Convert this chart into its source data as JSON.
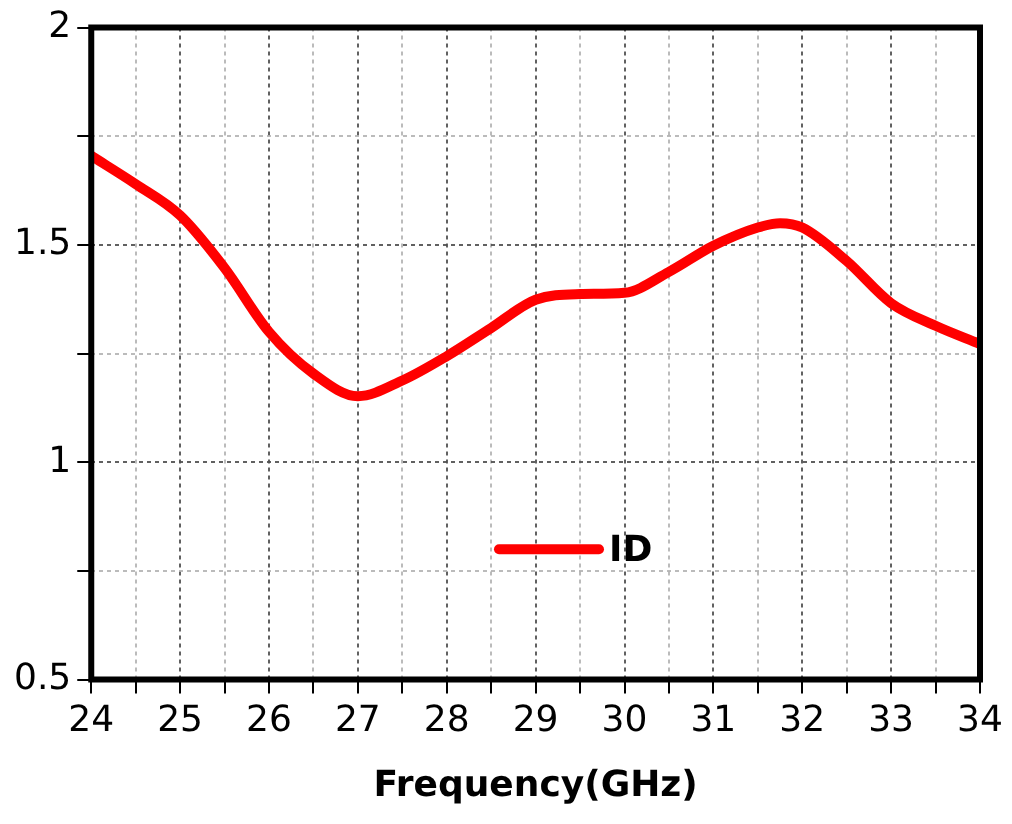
{
  "chart_data": {
    "type": "line",
    "xlabel": "Frequency(GHz)",
    "x": [
      24,
      24.5,
      25,
      25.5,
      26,
      26.5,
      27,
      27.5,
      28,
      28.5,
      29,
      29.5,
      30,
      30.5,
      31,
      31.5,
      31.75,
      32,
      32.5,
      33,
      33.5,
      34
    ],
    "series": [
      {
        "name": "ID",
        "color": "#ff0000",
        "values": [
          1.705,
          1.64,
          1.568,
          1.447,
          1.3,
          1.204,
          1.152,
          1.188,
          1.244,
          1.309,
          1.374,
          1.387,
          1.39,
          1.438,
          1.498,
          1.54,
          1.55,
          1.54,
          1.463,
          1.366,
          1.314,
          1.272
        ]
      }
    ],
    "xlim": [
      24,
      34
    ],
    "xticks": [
      24,
      {
        "value": 24.5,
        "label": null
      },
      25,
      {
        "value": 25.5,
        "label": null
      },
      26,
      {
        "value": 26.5,
        "label": null
      },
      27,
      {
        "value": 27.5,
        "label": null
      },
      28,
      {
        "value": 28.5,
        "label": null
      },
      29,
      {
        "value": 29.5,
        "label": null
      },
      30,
      {
        "value": 30.5,
        "label": null
      },
      31,
      {
        "value": 31.5,
        "label": null
      },
      32,
      {
        "value": 32.5,
        "label": null
      },
      33,
      {
        "value": 33.5,
        "label": null
      },
      34
    ],
    "ylim": [
      0.5,
      2
    ],
    "yticks": [
      0.5,
      {
        "value": 0.75,
        "label": null
      },
      1,
      {
        "value": 1.25,
        "label": null
      },
      1.5,
      {
        "value": 1.75,
        "label": null
      },
      2
    ],
    "grid": true,
    "legend": "bottom",
    "marker": "none",
    "line_style": "solid"
  }
}
